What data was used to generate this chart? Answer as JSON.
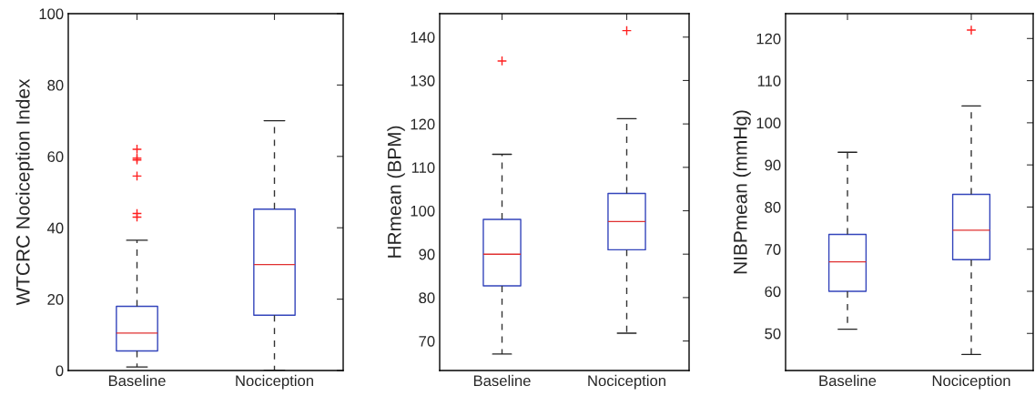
{
  "chart_data": [
    {
      "type": "box",
      "categories": [
        "Baseline",
        "Nociception"
      ],
      "ylabel": "WTCRC Nociception Index",
      "ylim": [
        0,
        100
      ],
      "yticks": [
        0,
        20,
        40,
        60,
        80,
        100
      ],
      "boxes": [
        {
          "low": 1,
          "q1": 5.5,
          "median": 10.5,
          "q3": 18,
          "high": 36.5,
          "outliers": [
            43,
            44,
            54.5,
            59,
            59.5,
            62
          ]
        },
        {
          "low": 0,
          "q1": 15.5,
          "median": 29.7,
          "q3": 45.2,
          "high": 70
        }
      ]
    },
    {
      "type": "box",
      "categories": [
        "Baseline",
        "Nociception"
      ],
      "ylabel": "HRmean (BPM)",
      "ylim": [
        63.2,
        145.4
      ],
      "yticks": [
        70,
        80,
        90,
        100,
        110,
        120,
        130,
        140
      ],
      "boxes": [
        {
          "low": 67,
          "q1": 82.7,
          "median": 90,
          "q3": 98,
          "high": 113,
          "outliers": [
            134.5
          ]
        },
        {
          "low": 71.8,
          "q1": 91,
          "median": 97.5,
          "q3": 104,
          "high": 121.2,
          "outliers": [
            141.5
          ]
        }
      ]
    },
    {
      "type": "box",
      "categories": [
        "Baseline",
        "Nociception"
      ],
      "ylabel": "NIBPmean (mmHg)",
      "ylim": [
        41.2,
        125.9
      ],
      "yticks": [
        50,
        60,
        70,
        80,
        90,
        100,
        110,
        120
      ],
      "boxes": [
        {
          "low": 51,
          "q1": 60,
          "median": 67,
          "q3": 73.5,
          "high": 93
        },
        {
          "low": 45,
          "q1": 67.5,
          "median": 74.5,
          "q3": 83,
          "high": 104,
          "outliers": [
            122
          ]
        }
      ]
    }
  ]
}
